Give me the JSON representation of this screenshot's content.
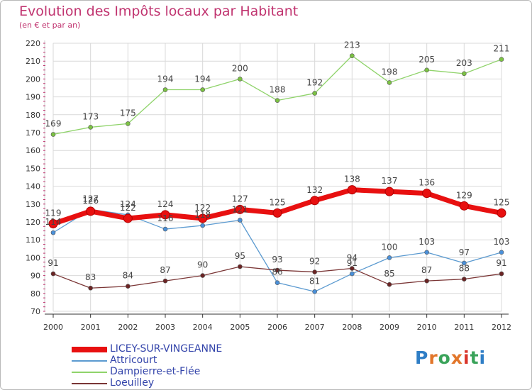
{
  "header": {
    "title": "Evolution des Impôts locaux par Habitant",
    "subtitle": "(en € et par an)"
  },
  "logo": {
    "text": "Proxiti"
  },
  "colors": {
    "title": "#c0336f",
    "grid": "#d9d9d9",
    "axis_text": "#333333",
    "tick_marks": "#c0336f",
    "legend_text": "#3344aa"
  },
  "chart_data": {
    "type": "line",
    "title": "Evolution des Impôts locaux par Habitant",
    "subtitle": "(en € et par an)",
    "xlabel": "",
    "ylabel": "",
    "ylim": [
      70,
      220
    ],
    "yticks": [
      70,
      80,
      90,
      100,
      110,
      120,
      130,
      140,
      150,
      160,
      170,
      180,
      190,
      200,
      210,
      220
    ],
    "grid": true,
    "legend_position": "bottom-left",
    "categories": [
      "2000",
      "2001",
      "2002",
      "2003",
      "2004",
      "2005",
      "2006",
      "2007",
      "2008",
      "2009",
      "2010",
      "2011",
      "2012"
    ],
    "series": [
      {
        "name": "LICEY-SUR-VINGEANNE",
        "color": "#e81010",
        "marker_color": "#e81010",
        "emphasis": true,
        "values": [
          119,
          126,
          122,
          124,
          122,
          127,
          125,
          132,
          138,
          137,
          136,
          129,
          125
        ]
      },
      {
        "name": "Attricourt",
        "color": "#5b9ad0",
        "marker_color": "#4a90d9",
        "emphasis": false,
        "values": [
          114,
          127,
          124,
          116,
          118,
          121,
          86,
          81,
          91,
          100,
          103,
          97,
          103
        ]
      },
      {
        "name": "Dampierre-et-Flée",
        "color": "#8fd36a",
        "marker_color": "#7cc243",
        "emphasis": false,
        "values": [
          169,
          173,
          175,
          194,
          194,
          200,
          188,
          192,
          213,
          198,
          205,
          203,
          211
        ]
      },
      {
        "name": "Loeuilley",
        "color": "#7a3535",
        "marker_color": "#6b2424",
        "emphasis": false,
        "values": [
          91,
          83,
          84,
          87,
          90,
          95,
          93,
          92,
          94,
          85,
          87,
          88,
          91
        ]
      }
    ]
  }
}
